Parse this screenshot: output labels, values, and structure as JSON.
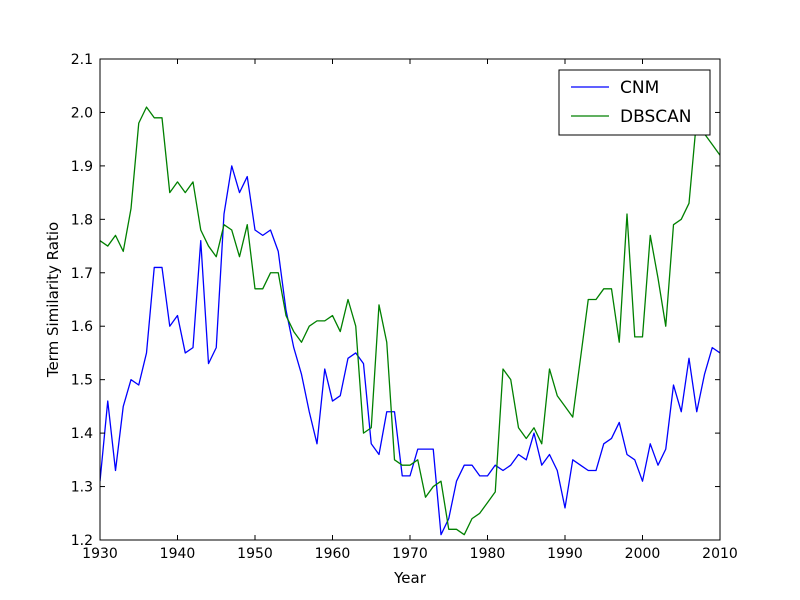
{
  "chart_data": {
    "type": "line",
    "title": "",
    "xlabel": "Year",
    "ylabel": "Term Similarity Ratio",
    "xlim": [
      1930,
      2010
    ],
    "ylim": [
      1.2,
      2.1
    ],
    "xticks": [
      1930,
      1940,
      1950,
      1960,
      1970,
      1980,
      1990,
      2000,
      2010
    ],
    "xtick_labels": [
      "1930",
      "1940",
      "1950",
      "1960",
      "1970",
      "1980",
      "1990",
      "2000",
      "2010"
    ],
    "yticks": [
      1.2,
      1.3,
      1.4,
      1.5,
      1.6,
      1.7,
      1.8,
      1.9,
      2.0,
      2.1
    ],
    "ytick_labels": [
      "1.2",
      "1.3",
      "1.4",
      "1.5",
      "1.6",
      "1.7",
      "1.8",
      "1.9",
      "2.0",
      "2.1"
    ],
    "grid": false,
    "legend_position": "top-right",
    "x": [
      1930,
      1931,
      1932,
      1933,
      1934,
      1935,
      1936,
      1937,
      1938,
      1939,
      1940,
      1941,
      1942,
      1943,
      1944,
      1945,
      1946,
      1947,
      1948,
      1949,
      1950,
      1951,
      1952,
      1953,
      1954,
      1955,
      1956,
      1957,
      1958,
      1959,
      1960,
      1961,
      1962,
      1963,
      1964,
      1965,
      1966,
      1967,
      1968,
      1969,
      1970,
      1971,
      1972,
      1973,
      1974,
      1975,
      1976,
      1977,
      1978,
      1979,
      1980,
      1981,
      1982,
      1983,
      1984,
      1985,
      1986,
      1987,
      1988,
      1989,
      1990,
      1991,
      1992,
      1993,
      1994,
      1995,
      1996,
      1997,
      1998,
      1999,
      2000,
      2001,
      2002,
      2003,
      2004,
      2005,
      2006,
      2007,
      2008,
      2009,
      2010
    ],
    "series": [
      {
        "name": "CNM",
        "color": "#0000ff",
        "values": [
          1.31,
          1.46,
          1.33,
          1.45,
          1.5,
          1.49,
          1.55,
          1.71,
          1.71,
          1.6,
          1.62,
          1.55,
          1.56,
          1.76,
          1.53,
          1.56,
          1.81,
          1.9,
          1.85,
          1.88,
          1.78,
          1.77,
          1.78,
          1.74,
          1.63,
          1.56,
          1.51,
          1.44,
          1.38,
          1.52,
          1.46,
          1.47,
          1.54,
          1.55,
          1.53,
          1.38,
          1.36,
          1.44,
          1.44,
          1.32,
          1.32,
          1.37,
          1.37,
          1.37,
          1.21,
          1.24,
          1.31,
          1.34,
          1.34,
          1.32,
          1.32,
          1.34,
          1.33,
          1.34,
          1.36,
          1.35,
          1.4,
          1.34,
          1.36,
          1.33,
          1.26,
          1.35,
          1.34,
          1.33,
          1.33,
          1.38,
          1.39,
          1.42,
          1.36,
          1.35,
          1.31,
          1.38,
          1.34,
          1.37,
          1.49,
          1.44,
          1.54,
          1.44,
          1.51,
          1.56,
          1.55
        ]
      },
      {
        "name": "DBSCAN",
        "color": "#008000",
        "values": [
          1.76,
          1.75,
          1.77,
          1.74,
          1.82,
          1.98,
          2.01,
          1.99,
          1.99,
          1.85,
          1.87,
          1.85,
          1.87,
          1.78,
          1.75,
          1.73,
          1.79,
          1.78,
          1.73,
          1.79,
          1.67,
          1.67,
          1.7,
          1.7,
          1.62,
          1.59,
          1.57,
          1.6,
          1.61,
          1.61,
          1.62,
          1.59,
          1.65,
          1.6,
          1.4,
          1.41,
          1.64,
          1.57,
          1.35,
          1.34,
          1.34,
          1.35,
          1.28,
          1.3,
          1.31,
          1.22,
          1.22,
          1.21,
          1.24,
          1.25,
          1.27,
          1.29,
          1.52,
          1.5,
          1.41,
          1.39,
          1.41,
          1.38,
          1.52,
          1.47,
          1.45,
          1.43,
          1.54,
          1.65,
          1.65,
          1.67,
          1.67,
          1.57,
          1.81,
          1.58,
          1.58,
          1.77,
          1.69,
          1.6,
          1.79,
          1.8,
          1.83,
          1.99,
          1.96,
          1.94,
          1.92
        ]
      }
    ]
  }
}
